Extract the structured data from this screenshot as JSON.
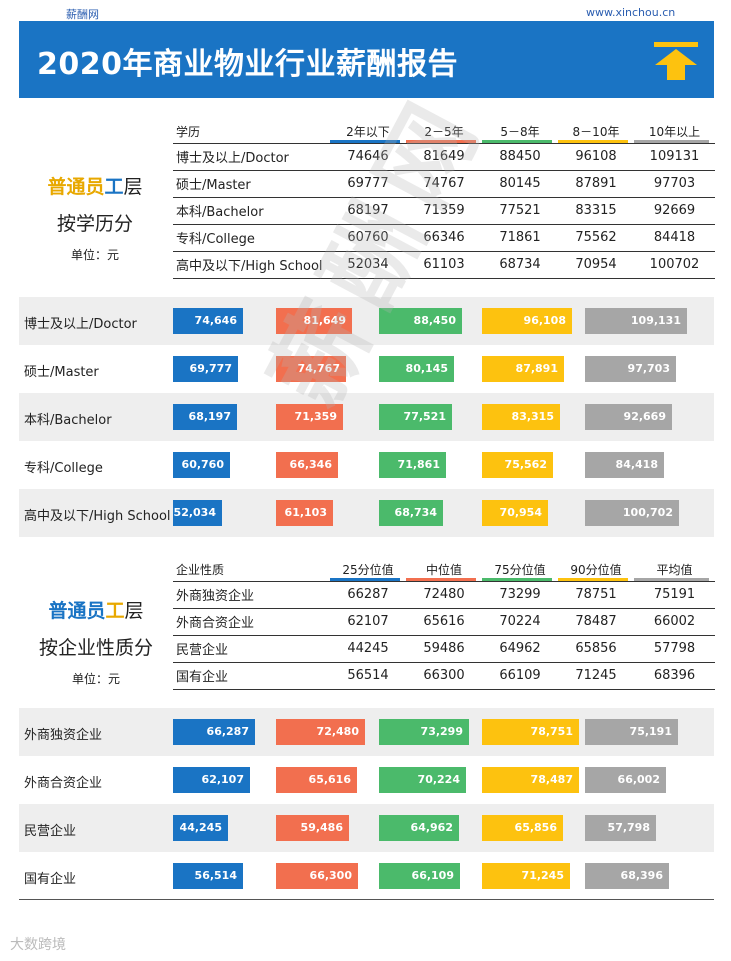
{
  "site_left": "薪酬网",
  "site_right": "www.xinchou.cn",
  "banner_title": "2020年商业物业行业薪酬报告",
  "colors": {
    "blue": "#1a74c4",
    "orange": "#f26f4f",
    "green": "#4bba6b",
    "yellow": "#fdc20f",
    "gray": "#a6a6a6",
    "banner": "#1a74c4"
  },
  "icons": {
    "banner": "up-arrow-icon"
  },
  "section1": {
    "title_a": "普通员",
    "title_b": "工",
    "title_c": "层",
    "subtitle": "按学历分",
    "unit": "单位：元",
    "header": [
      "学历",
      "2年以下",
      "2－5年",
      "5－8年",
      "8－10年",
      "10年以上"
    ]
  },
  "section2": {
    "title_a": "普通员",
    "title_b": "工",
    "title_c": "层",
    "subtitle": "按企业性质分",
    "unit": "单位：元",
    "header": [
      "企业性质",
      "25分位值",
      "中位值",
      "75分位值",
      "90分位值",
      "平均值"
    ]
  },
  "chart_data": [
    {
      "type": "bar",
      "categories": [
        "博士及以上/Doctor",
        "硕士/Master",
        "本科/Bachelor",
        "专科/College",
        "高中及以下/High School"
      ],
      "series": [
        {
          "name": "2年以下",
          "values": [
            74646,
            69777,
            68197,
            60760,
            52034
          ],
          "labels": [
            "74,646",
            "69,777",
            "68,197",
            "60,760",
            "52,034"
          ]
        },
        {
          "name": "2－5年",
          "values": [
            81649,
            74767,
            71359,
            66346,
            61103
          ],
          "labels": [
            "81,649",
            "74,767",
            "71,359",
            "66,346",
            "61,103"
          ]
        },
        {
          "name": "5－8年",
          "values": [
            88450,
            80145,
            77521,
            71861,
            68734
          ],
          "labels": [
            "88,450",
            "80,145",
            "77,521",
            "71,861",
            "68,734"
          ]
        },
        {
          "name": "8－10年",
          "values": [
            96108,
            87891,
            83315,
            75562,
            70954
          ],
          "labels": [
            "96,108",
            "87,891",
            "83,315",
            "75,562",
            "70,954"
          ]
        },
        {
          "name": "10年以上",
          "values": [
            109131,
            97703,
            92669,
            84418,
            100702
          ],
          "labels": [
            "109,131",
            "97,703",
            "92,669",
            "84,418",
            "100,702"
          ]
        }
      ]
    },
    {
      "type": "bar",
      "categories": [
        "外商独资企业",
        "外商合资企业",
        "民营企业",
        "国有企业"
      ],
      "series": [
        {
          "name": "25分位值",
          "values": [
            66287,
            62107,
            44245,
            56514
          ],
          "labels": [
            "66,287",
            "62,107",
            "44,245",
            "56,514"
          ]
        },
        {
          "name": "中位值",
          "values": [
            72480,
            65616,
            59486,
            66300
          ],
          "labels": [
            "72,480",
            "65,616",
            "59,486",
            "66,300"
          ]
        },
        {
          "name": "75分位值",
          "values": [
            73299,
            70224,
            64962,
            66109
          ],
          "labels": [
            "73,299",
            "70,224",
            "64,962",
            "66,109"
          ]
        },
        {
          "name": "90分位值",
          "values": [
            78751,
            78487,
            65856,
            71245
          ],
          "labels": [
            "78,751",
            "78,487",
            "65,856",
            "71,245"
          ]
        },
        {
          "name": "平均值",
          "values": [
            75191,
            66002,
            57798,
            68396
          ],
          "labels": [
            "75,191",
            "66,002",
            "57,798",
            "68,396"
          ]
        }
      ]
    }
  ],
  "watermark": "薪酬网",
  "footer_mark": "大数跨境"
}
